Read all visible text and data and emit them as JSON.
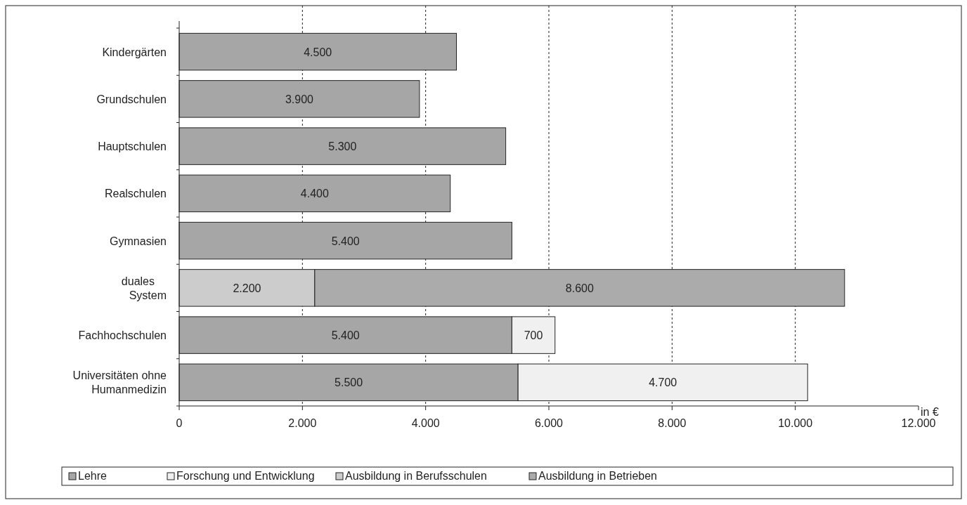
{
  "chart_data": {
    "type": "bar",
    "orientation": "horizontal",
    "stacked": true,
    "xlabel": "in €",
    "categories": [
      "Kindergärten",
      "Grundschulen",
      "Hauptschulen",
      "Realschulen",
      "Gymnasien",
      "duales\nSystem",
      "Fachhochschulen",
      "Universitäten ohne\nHumanmedizin"
    ],
    "series": [
      {
        "name": "Lehre",
        "color": "#a6a6a6",
        "values": [
          4500,
          3900,
          5300,
          4400,
          5400,
          null,
          5400,
          5500
        ],
        "value_labels": [
          "4.500",
          "3.900",
          "5.300",
          "4.400",
          "5.400",
          null,
          "5.400",
          "5.500"
        ]
      },
      {
        "name": "Forschung und Entwicklung",
        "color": "#f0f0f0",
        "values": [
          null,
          null,
          null,
          null,
          null,
          null,
          700,
          4700
        ],
        "value_labels": [
          null,
          null,
          null,
          null,
          null,
          null,
          "700",
          "4.700"
        ]
      },
      {
        "name": "Ausbildung in Berufsschulen",
        "color": "#cccccc",
        "values": [
          null,
          null,
          null,
          null,
          null,
          2200,
          null,
          null
        ],
        "value_labels": [
          null,
          null,
          null,
          null,
          null,
          "2.200",
          null,
          null
        ]
      },
      {
        "name": "Ausbildung in Betrieben",
        "color": "#ababab",
        "values": [
          null,
          null,
          null,
          null,
          null,
          8600,
          null,
          null
        ],
        "value_labels": [
          null,
          null,
          null,
          null,
          null,
          "8.600",
          null,
          null
        ]
      }
    ],
    "xlim": [
      0,
      12000
    ],
    "xticks": [
      0,
      {
        "value": 2000,
        "label": "2.000"
      },
      {
        "value": 4000,
        "label": "4.000"
      },
      {
        "value": 6000,
        "label": "6.000"
      },
      {
        "value": 8000,
        "label": "8.000"
      },
      {
        "value": 10000,
        "label": "10.000"
      },
      {
        "value": 12000,
        "label": "12.000"
      }
    ],
    "grid": "x",
    "line_style": "dashed",
    "legend": "bottom"
  }
}
